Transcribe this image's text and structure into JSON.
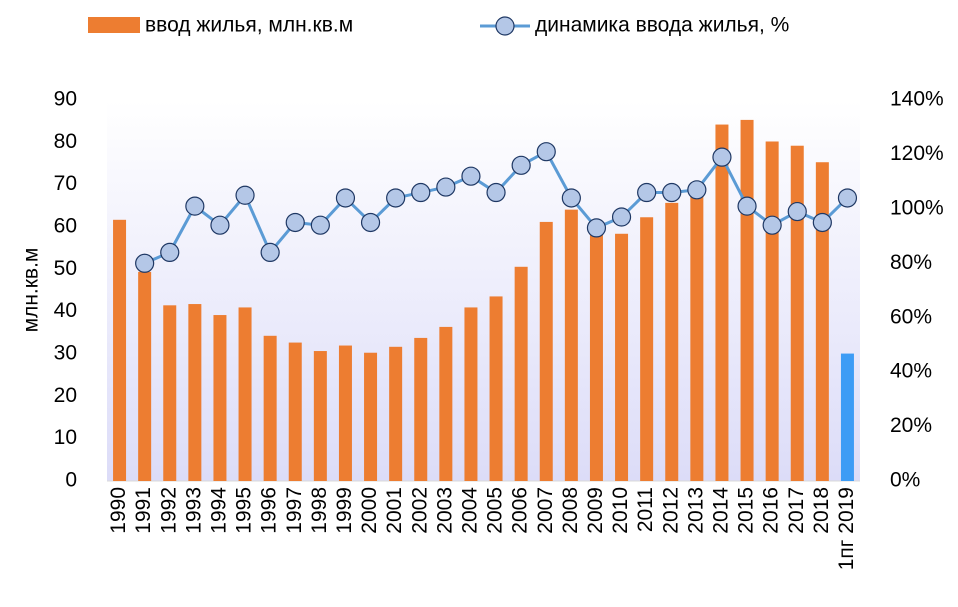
{
  "chart_data": {
    "type": "combo",
    "categories": [
      "1990",
      "1991",
      "1992",
      "1993",
      "1994",
      "1995",
      "1996",
      "1997",
      "1998",
      "1999",
      "2000",
      "2001",
      "2002",
      "2003",
      "2004",
      "2005",
      "2006",
      "2007",
      "2008",
      "2009",
      "2010",
      "2011",
      "2012",
      "2013",
      "2014",
      "2015",
      "2016",
      "2017",
      "2018",
      "1пг 2019"
    ],
    "ylabel": "млн.кв.м",
    "ylim": [
      0,
      90
    ],
    "yticks": [
      0,
      10,
      20,
      30,
      40,
      50,
      60,
      70,
      80,
      90
    ],
    "y2lim": [
      0,
      140
    ],
    "y2ticks": [
      {
        "value": 0,
        "label": "0%"
      },
      {
        "value": 20,
        "label": "20%"
      },
      {
        "value": 40,
        "label": "40%"
      },
      {
        "value": 60,
        "label": "60%"
      },
      {
        "value": 80,
        "label": "80%"
      },
      {
        "value": 100,
        "label": "100%"
      },
      {
        "value": 120,
        "label": "120%"
      },
      {
        "value": 140,
        "label": "140%"
      }
    ],
    "series": [
      {
        "name": "ввод жилья, млн.кв.м",
        "type": "bar",
        "color": "#ed7d31",
        "colors": [
          "#ed7d31",
          "#ed7d31",
          "#ed7d31",
          "#ed7d31",
          "#ed7d31",
          "#ed7d31",
          "#ed7d31",
          "#ed7d31",
          "#ed7d31",
          "#ed7d31",
          "#ed7d31",
          "#ed7d31",
          "#ed7d31",
          "#ed7d31",
          "#ed7d31",
          "#ed7d31",
          "#ed7d31",
          "#ed7d31",
          "#ed7d31",
          "#ed7d31",
          "#ed7d31",
          "#ed7d31",
          "#ed7d31",
          "#ed7d31",
          "#ed7d31",
          "#ed7d31",
          "#ed7d31",
          "#ed7d31",
          "#ed7d31",
          "#3d9cf5"
        ],
        "values": [
          61.7,
          49.4,
          41.5,
          41.8,
          39.2,
          41.0,
          34.3,
          32.7,
          30.7,
          32.0,
          30.3,
          31.7,
          33.8,
          36.4,
          41.0,
          43.6,
          50.6,
          61.2,
          64.1,
          59.9,
          58.4,
          62.3,
          65.7,
          70.5,
          84.2,
          85.3,
          80.2,
          79.2,
          75.3,
          30.1
        ]
      },
      {
        "name": "динамика ввода жилья, %",
        "type": "line",
        "axis": "y2",
        "color": "#5b9bd5",
        "marker_color": "#b4c7e7",
        "values": [
          null,
          80,
          84,
          101,
          94,
          105,
          84,
          95,
          94,
          104,
          95,
          104,
          106,
          108,
          112,
          106,
          116,
          121,
          104,
          93,
          97,
          106,
          106,
          107,
          119,
          101,
          94,
          99,
          95,
          104
        ]
      }
    ]
  }
}
